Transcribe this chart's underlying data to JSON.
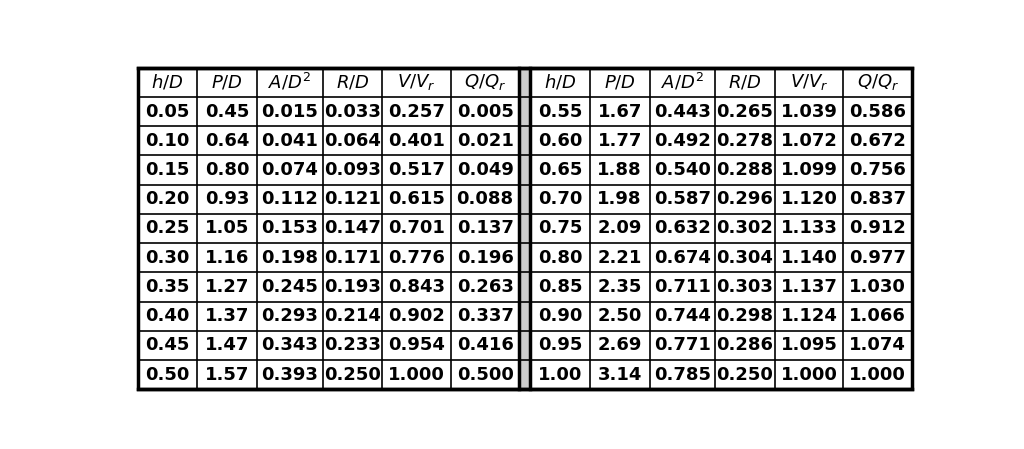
{
  "rows": [
    [
      "0.05",
      "0.45",
      "0.015",
      "0.033",
      "0.257",
      "0.005",
      "0.55",
      "1.67",
      "0.443",
      "0.265",
      "1.039",
      "0.586"
    ],
    [
      "0.10",
      "0.64",
      "0.041",
      "0.064",
      "0.401",
      "0.021",
      "0.60",
      "1.77",
      "0.492",
      "0.278",
      "1.072",
      "0.672"
    ],
    [
      "0.15",
      "0.80",
      "0.074",
      "0.093",
      "0.517",
      "0.049",
      "0.65",
      "1.88",
      "0.540",
      "0.288",
      "1.099",
      "0.756"
    ],
    [
      "0.20",
      "0.93",
      "0.112",
      "0.121",
      "0.615",
      "0.088",
      "0.70",
      "1.98",
      "0.587",
      "0.296",
      "1.120",
      "0.837"
    ],
    [
      "0.25",
      "1.05",
      "0.153",
      "0.147",
      "0.701",
      "0.137",
      "0.75",
      "2.09",
      "0.632",
      "0.302",
      "1.133",
      "0.912"
    ],
    [
      "0.30",
      "1.16",
      "0.198",
      "0.171",
      "0.776",
      "0.196",
      "0.80",
      "2.21",
      "0.674",
      "0.304",
      "1.140",
      "0.977"
    ],
    [
      "0.35",
      "1.27",
      "0.245",
      "0.193",
      "0.843",
      "0.263",
      "0.85",
      "2.35",
      "0.711",
      "0.303",
      "1.137",
      "1.030"
    ],
    [
      "0.40",
      "1.37",
      "0.293",
      "0.214",
      "0.902",
      "0.337",
      "0.90",
      "2.50",
      "0.744",
      "0.298",
      "1.124",
      "1.066"
    ],
    [
      "0.45",
      "1.47",
      "0.343",
      "0.233",
      "0.954",
      "0.416",
      "0.95",
      "2.69",
      "0.771",
      "0.286",
      "1.095",
      "1.074"
    ],
    [
      "0.50",
      "1.57",
      "0.393",
      "0.250",
      "1.000",
      "0.500",
      "1.00",
      "3.14",
      "0.785",
      "0.250",
      "1.000",
      "1.000"
    ]
  ],
  "bg_color": "#ffffff",
  "border_color": "#000000",
  "text_color": "#000000",
  "header_fontsize": 13,
  "data_fontsize": 13
}
